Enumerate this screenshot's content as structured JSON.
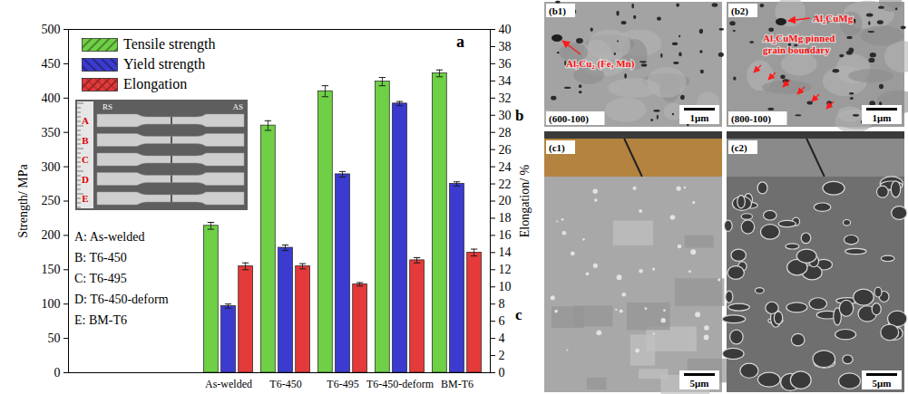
{
  "chart_data": {
    "type": "bar",
    "panel_label": "a",
    "categories": [
      "As-welded",
      "T6-450",
      "T6-495",
      "T6-450-deform",
      "BM-T6"
    ],
    "series": [
      {
        "name": "Tensile strength",
        "color": "#6fcf45",
        "values": [
          214,
          360,
          410,
          424,
          436
        ],
        "errors": [
          5,
          7,
          8,
          6,
          5
        ]
      },
      {
        "name": "Yield strength",
        "color": "#3b3bd0",
        "values": [
          97,
          182,
          289,
          392,
          275
        ],
        "errors": [
          3,
          4,
          4,
          3,
          3
        ]
      },
      {
        "name": "Elongation",
        "color": "#e53a3a",
        "axis": "y2",
        "values": [
          12.4,
          12.4,
          10.3,
          13.1,
          14.0
        ],
        "errors": [
          0.4,
          0.3,
          0.2,
          0.3,
          0.4
        ]
      }
    ],
    "ylabel": "Strength/ MPa",
    "y2label": "Elongation/ %",
    "ylim": [
      0,
      500
    ],
    "yticks": [
      0,
      50,
      100,
      150,
      200,
      250,
      300,
      350,
      400,
      450,
      500
    ],
    "y2lim": [
      0,
      40
    ],
    "y2ticks": [
      0,
      2,
      4,
      6,
      8,
      10,
      12,
      14,
      16,
      18,
      20,
      22,
      24,
      26,
      28,
      30,
      32,
      34,
      36,
      38,
      40
    ],
    "grid": false,
    "legend": "upper left"
  },
  "inset": {
    "photo_labels": [
      "RS",
      "AS"
    ],
    "specimens": [
      "A",
      "B",
      "C",
      "D",
      "E"
    ],
    "key": [
      "A: As-welded",
      "B: T6-450",
      "C: T6-495",
      "D: T6-450-deform",
      "E: BM-T6"
    ]
  },
  "panel_groups": [
    {
      "letter": "b",
      "panels": [
        {
          "label": "(b1)",
          "annotations": [
            "Al₇Cu₂ (Fe, Mn)"
          ],
          "condition": "(600-100)",
          "scale_bar": "1μm"
        },
        {
          "label": "(b2)",
          "annotations": [
            "Al₂CuMg",
            "Al₂CuMg pinned grain boundary"
          ],
          "condition": "(800-100)",
          "scale_bar": "1μm"
        }
      ]
    },
    {
      "letter": "c",
      "panels": [
        {
          "label": "(c1)",
          "scale_bar": "5μm"
        },
        {
          "label": "(c2)",
          "scale_bar": "5μm"
        }
      ]
    }
  ]
}
